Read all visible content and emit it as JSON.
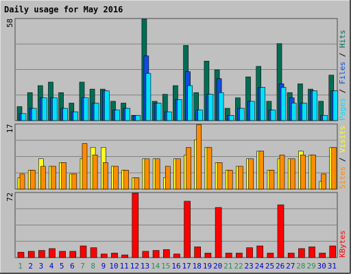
{
  "chart_data": {
    "type": "bar",
    "title": "Daily usage for May 2016",
    "categories": [
      "1",
      "2",
      "3",
      "4",
      "5",
      "6",
      "7",
      "8",
      "9",
      "10",
      "11",
      "12",
      "13",
      "14",
      "15",
      "16",
      "17",
      "18",
      "19",
      "20",
      "21",
      "22",
      "23",
      "24",
      "25",
      "26",
      "27",
      "28",
      "29",
      "30",
      "31"
    ],
    "weekend_days": [
      "1",
      "7",
      "8",
      "14",
      "15",
      "21",
      "22",
      "28",
      "29"
    ],
    "colors": {
      "title": "#0000cc",
      "frame": "#4a4a4a",
      "panel": "#c0c0c0",
      "gridline": "#808080",
      "hits": "#006e55",
      "files": "#0f4ddd",
      "pages": "#00e0ff",
      "visits": "#ffff20",
      "sites": "#ff8c00",
      "kbytes": "#ff0000",
      "weekday_label": "#0000cc",
      "weekend_label": "#2e8b57"
    },
    "panels": [
      {
        "id": "hits-files-pages",
        "ymax": 58,
        "ymax_label": "58",
        "legend": [
          "Pages",
          "Files",
          "Hits"
        ],
        "legend_colors": [
          "#00e0ff",
          "#0f4ddd",
          "#006e55"
        ],
        "series": [
          {
            "name": "Hits",
            "color": "#006e55",
            "values": [
              8,
              16,
              20,
              22,
              16,
              10,
              22,
              18,
              18,
              11,
              10,
              3,
              58,
              11,
              15,
              20,
              43,
              16,
              34,
              29,
              7,
              13,
              25,
              31,
              11,
              44,
              16,
              21,
              18,
              11,
              26
            ]
          },
          {
            "name": "Files",
            "color": "#0f4ddd",
            "values": [
              4,
              7,
              13,
              13,
              7,
              5,
              13,
              10,
              17,
              6,
              7,
              3,
              37,
              10,
              5,
              12,
              28,
              6,
              15,
              24,
              3,
              7,
              11,
              19,
              6,
              21,
              13,
              10,
              17,
              3,
              17
            ]
          },
          {
            "name": "Pages",
            "color": "#00e0ff",
            "values": [
              4,
              7,
              13,
              13,
              7,
              5,
              13,
              10,
              17,
              6,
              7,
              3,
              27,
              10,
              5,
              12,
              20,
              6,
              15,
              16,
              3,
              7,
              11,
              19,
              6,
              19,
              10,
              10,
              17,
              3,
              17
            ]
          }
        ]
      },
      {
        "id": "visits-sites",
        "ymax": 17,
        "ymax_label": "17",
        "legend": [
          "Sites",
          "Visits"
        ],
        "legend_colors": [
          "#ff8c00",
          "#ffff20"
        ],
        "series": [
          {
            "name": "Visits",
            "color": "#ffff20",
            "values": [
              3,
              5,
              8,
              6,
              7,
              4,
              8,
              11,
              11,
              6,
              5,
              3,
              8,
              8,
              3,
              8,
              9,
              13,
              11,
              7,
              5,
              6,
              8,
              10,
              5,
              8,
              8,
              10,
              9,
              2,
              11
            ]
          },
          {
            "name": "Sites",
            "color": "#ff8c00",
            "values": [
              4,
              5,
              6,
              6,
              7,
              4,
              12,
              9,
              7,
              6,
              5,
              3,
              8,
              8,
              6,
              8,
              11,
              17,
              11,
              7,
              5,
              6,
              8,
              10,
              5,
              9,
              8,
              9,
              9,
              4,
              11
            ]
          }
        ]
      },
      {
        "id": "kbytes",
        "ymax": 72,
        "ymax_label": "72",
        "legend": [
          "KBytes"
        ],
        "legend_colors": [
          "#ff0000"
        ],
        "series": [
          {
            "name": "KBytes",
            "color": "#ff0000",
            "values": [
              6,
              7,
              8,
              10,
              7,
              7,
              13,
              11,
              4,
              5,
              3,
              72,
              7,
              8,
              9,
              4,
              63,
              12,
              5,
              56,
              5,
              5,
              11,
              13,
              5,
              59,
              5,
              10,
              12,
              5,
              13
            ]
          }
        ]
      }
    ]
  }
}
